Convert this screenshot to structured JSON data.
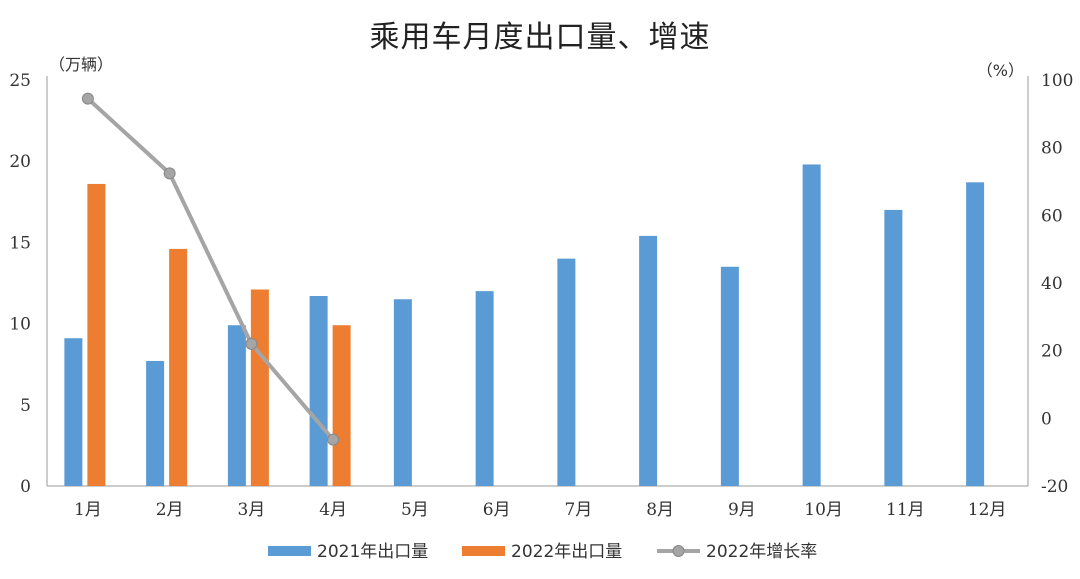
{
  "title": "乘用车月度出口量、增速",
  "chart_data": {
    "type": "bar",
    "title": "乘用车月度出口量、增速",
    "categories": [
      "1月",
      "2月",
      "3月",
      "4月",
      "5月",
      "6月",
      "7月",
      "8月",
      "9月",
      "10月",
      "11月",
      "12月"
    ],
    "left_axis": {
      "unit_label": "（万辆）",
      "ylim": [
        0,
        25
      ],
      "ticks": [
        0,
        5,
        10,
        15,
        20,
        25
      ]
    },
    "right_axis": {
      "unit_label": "（%）",
      "ylim": [
        -20,
        100
      ],
      "ticks": [
        -20,
        0,
        20,
        40,
        60,
        80,
        100
      ]
    },
    "series": [
      {
        "name": "2021年出口量",
        "type": "bar",
        "axis": "left",
        "color": "#5B9BD5",
        "values": [
          9.1,
          7.7,
          9.9,
          11.7,
          11.5,
          12.0,
          14.0,
          15.4,
          13.5,
          19.8,
          17.0,
          18.7
        ]
      },
      {
        "name": "2022年出口量",
        "type": "bar",
        "axis": "left",
        "color": "#ED7D31",
        "values": [
          18.6,
          14.6,
          12.1,
          9.9,
          null,
          null,
          null,
          null,
          null,
          null,
          null,
          null
        ]
      },
      {
        "name": "2022年增长率",
        "type": "line",
        "axis": "right",
        "color": "#A5A5A5",
        "values": [
          94.5,
          72.4,
          22.0,
          -6.3,
          null,
          null,
          null,
          null,
          null,
          null,
          null,
          null
        ]
      }
    ],
    "grid": false,
    "legend_position": "bottom"
  }
}
